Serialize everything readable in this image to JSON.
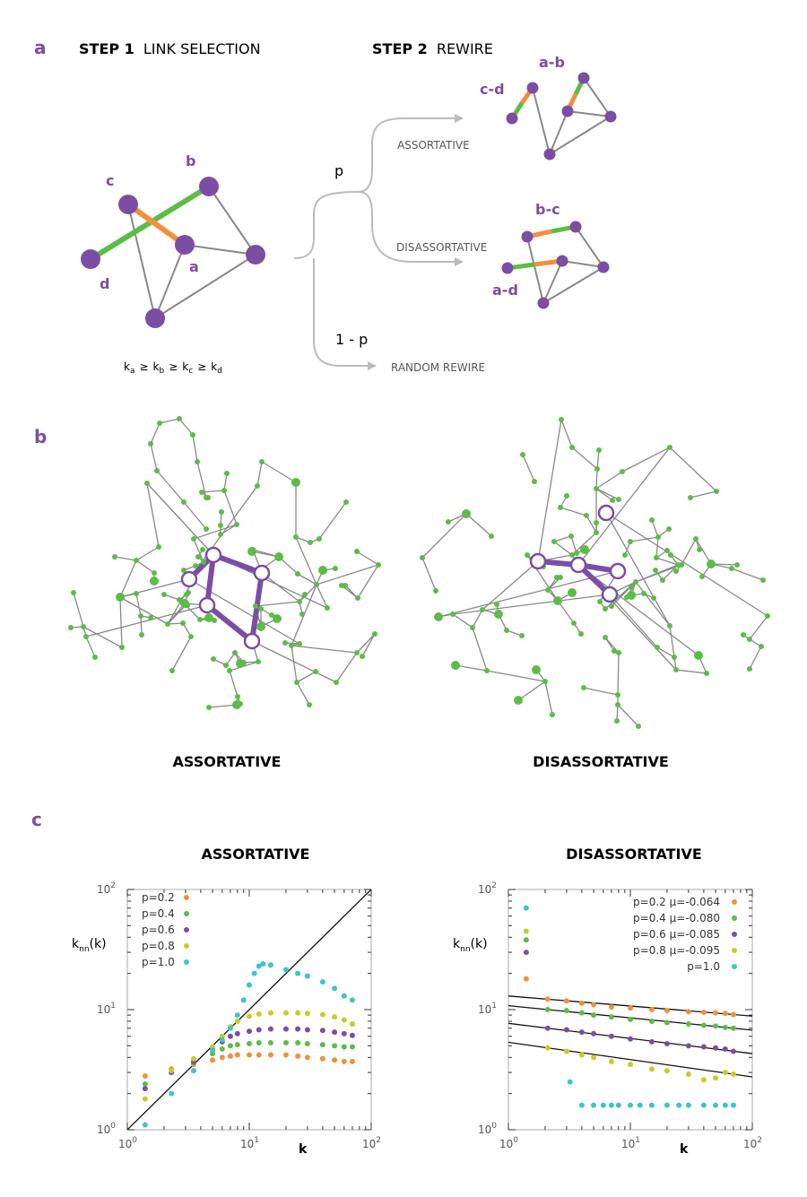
{
  "colors": {
    "purple": "#7b4ea3",
    "green": "#5bbd45",
    "orange": "#f0913a",
    "grey": "#888888",
    "arrow_grey": "#bbbbbb",
    "cyan": "#3cc6c8",
    "yellow": "#c8cc25"
  },
  "panel_a": {
    "letter": "a",
    "step1_bold": "STEP 1",
    "step1_text": "LINK SELECTION",
    "step2_bold": "STEP 2",
    "step2_text": "REWIRE",
    "node_labels": {
      "a": "a",
      "b": "b",
      "c": "c",
      "d": "d"
    },
    "branch_p": "p",
    "branch_1mp": "1 - p",
    "assortative": "ASSORTATIVE",
    "disassortative": "DISASSORTATIVE",
    "random": "RANDOM REWIRE",
    "pair_ab": "a-b",
    "pair_cd": "c-d",
    "pair_bc": "b-c",
    "pair_ad": "a-d",
    "ordering": {
      "k": "k",
      "a": "a",
      "b": "b",
      "c": "c",
      "d": "d",
      "ge": "≥"
    }
  },
  "panel_b": {
    "letter": "b",
    "left_label": "ASSORTATIVE",
    "right_label": "DISASSORTATIVE"
  },
  "panel_c": {
    "letter": "c",
    "left_title": "ASSORTATIVE",
    "right_title": "DISASSORTATIVE",
    "ylabel_main": "k",
    "ylabel_sub": "nn",
    "ylabel_tail": "(k)",
    "xlabel": "k",
    "tick_base": "10",
    "tick_exps": [
      "0",
      "1",
      "2"
    ],
    "left_legend": [
      "p=0.2",
      "p=0.4",
      "p=0.6",
      "p=0.8",
      "p=1.0"
    ],
    "right_legend": [
      "p=0.2  μ=-0.064",
      "p=0.4  μ=-0.080",
      "p=0.6  μ=-0.085",
      "p=0.8  μ=-0.095",
      "p=1.0"
    ]
  },
  "chart_data": [
    {
      "type": "scatter",
      "title": "ASSORTATIVE",
      "xlabel": "k",
      "ylabel": "knn(k)",
      "xscale": "log",
      "yscale": "log",
      "xlim": [
        1,
        100
      ],
      "ylim": [
        1,
        100
      ],
      "legend": "top-left",
      "series": [
        {
          "name": "p=0.2",
          "color": "#f0913a",
          "x": [
            1.4,
            2.3,
            3.5,
            5,
            6,
            7,
            8,
            10,
            12,
            15,
            20,
            25,
            30,
            40,
            50,
            60,
            70
          ],
          "y": [
            2.8,
            3.2,
            3.5,
            3.8,
            4.0,
            4.1,
            4.2,
            4.2,
            4.2,
            4.2,
            4.2,
            4.1,
            4.0,
            3.9,
            3.8,
            3.7,
            3.7
          ]
        },
        {
          "name": "p=0.4",
          "color": "#5bbd45",
          "x": [
            1.4,
            2.3,
            3.5,
            5,
            6,
            7,
            8,
            10,
            12,
            15,
            20,
            25,
            30,
            40,
            50,
            60,
            70
          ],
          "y": [
            2.4,
            3.0,
            3.6,
            4.3,
            4.7,
            5.0,
            5.1,
            5.2,
            5.3,
            5.3,
            5.3,
            5.3,
            5.2,
            5.1,
            5.0,
            4.9,
            4.9
          ]
        },
        {
          "name": "p=0.6",
          "color": "#7b4ea3",
          "x": [
            1.4,
            2.3,
            3.5,
            5,
            6,
            7,
            8,
            10,
            12,
            15,
            20,
            25,
            30,
            40,
            50,
            60,
            70
          ],
          "y": [
            2.2,
            3.0,
            3.7,
            4.7,
            5.4,
            6.0,
            6.3,
            6.6,
            6.8,
            6.9,
            6.9,
            6.9,
            6.8,
            6.7,
            6.5,
            6.3,
            6.1
          ]
        },
        {
          "name": "p=0.8",
          "color": "#c8cc25",
          "x": [
            1.4,
            2.3,
            3.5,
            5,
            6,
            7,
            8,
            10,
            12,
            15,
            20,
            25,
            30,
            40,
            50,
            60,
            70
          ],
          "y": [
            1.8,
            3.1,
            3.9,
            4.9,
            6.0,
            7.2,
            8.0,
            8.8,
            9.2,
            9.4,
            9.4,
            9.4,
            9.3,
            9.1,
            8.7,
            8.2,
            7.6
          ]
        },
        {
          "name": "p=1.0",
          "color": "#3cc6c8",
          "x": [
            1.4,
            2.3,
            3.5,
            5,
            6,
            7,
            8,
            9,
            10,
            11,
            12,
            13,
            15,
            20,
            25,
            30,
            40,
            50,
            60,
            70
          ],
          "y": [
            1.1,
            2.0,
            3.1,
            4.6,
            5.6,
            7.0,
            9.0,
            12.0,
            16.0,
            20.0,
            23.0,
            24.0,
            23.5,
            21.5,
            20.0,
            19.0,
            17.0,
            15.0,
            13.0,
            12.0
          ]
        }
      ],
      "reference_line": "knn = k"
    },
    {
      "type": "scatter",
      "title": "DISASSORTATIVE",
      "xlabel": "k",
      "ylabel": "knn(k)",
      "xscale": "log",
      "yscale": "log",
      "xlim": [
        1,
        100
      ],
      "ylim": [
        1,
        100
      ],
      "legend": "top-right",
      "series": [
        {
          "name": "p=0.2",
          "mu": -0.064,
          "color": "#f0913a",
          "x": [
            1.4,
            2.1,
            3,
            4,
            5,
            7,
            10,
            15,
            20,
            30,
            40,
            50,
            60,
            70
          ],
          "y": [
            18,
            12.2,
            11.8,
            11.3,
            11.0,
            10.5,
            10.3,
            10.0,
            9.8,
            9.6,
            9.5,
            9.4,
            9.3,
            9.1
          ]
        },
        {
          "name": "p=0.4",
          "mu": -0.08,
          "color": "#5bbd45",
          "x": [
            1.4,
            2.1,
            3,
            4,
            5,
            7,
            10,
            15,
            20,
            30,
            40,
            50,
            60,
            70
          ],
          "y": [
            38,
            10.0,
            9.8,
            9.4,
            9.0,
            8.7,
            8.3,
            8.0,
            7.8,
            7.6,
            7.4,
            7.3,
            7.1,
            7.0
          ]
        },
        {
          "name": "p=0.6",
          "mu": -0.085,
          "color": "#7b4ea3",
          "x": [
            1.4,
            2.1,
            3,
            4,
            5,
            7,
            10,
            15,
            20,
            30,
            40,
            50,
            60,
            70
          ],
          "y": [
            30,
            7.0,
            6.8,
            6.5,
            6.3,
            6.0,
            5.7,
            5.4,
            5.2,
            5.0,
            4.9,
            4.8,
            4.7,
            4.5
          ]
        },
        {
          "name": "p=0.8",
          "mu": -0.095,
          "color": "#c8cc25",
          "x": [
            1.4,
            2.1,
            3,
            4,
            5,
            7,
            10,
            15,
            20,
            30,
            40,
            50,
            60,
            70
          ],
          "y": [
            45,
            4.8,
            4.5,
            4.2,
            4.0,
            3.7,
            3.5,
            3.2,
            3.1,
            2.9,
            2.6,
            2.7,
            3.0,
            2.9
          ]
        },
        {
          "name": "p=1.0",
          "color": "#3cc6c8",
          "x": [
            1.4,
            3.2,
            4,
            5,
            6,
            7,
            8,
            10,
            12,
            15,
            20,
            25,
            30,
            40,
            50,
            60,
            70
          ],
          "y": [
            70,
            2.5,
            1.6,
            1.6,
            1.6,
            1.6,
            1.6,
            1.6,
            1.6,
            1.6,
            1.6,
            1.6,
            1.6,
            1.6,
            1.6,
            1.6,
            1.6
          ]
        }
      ]
    }
  ]
}
